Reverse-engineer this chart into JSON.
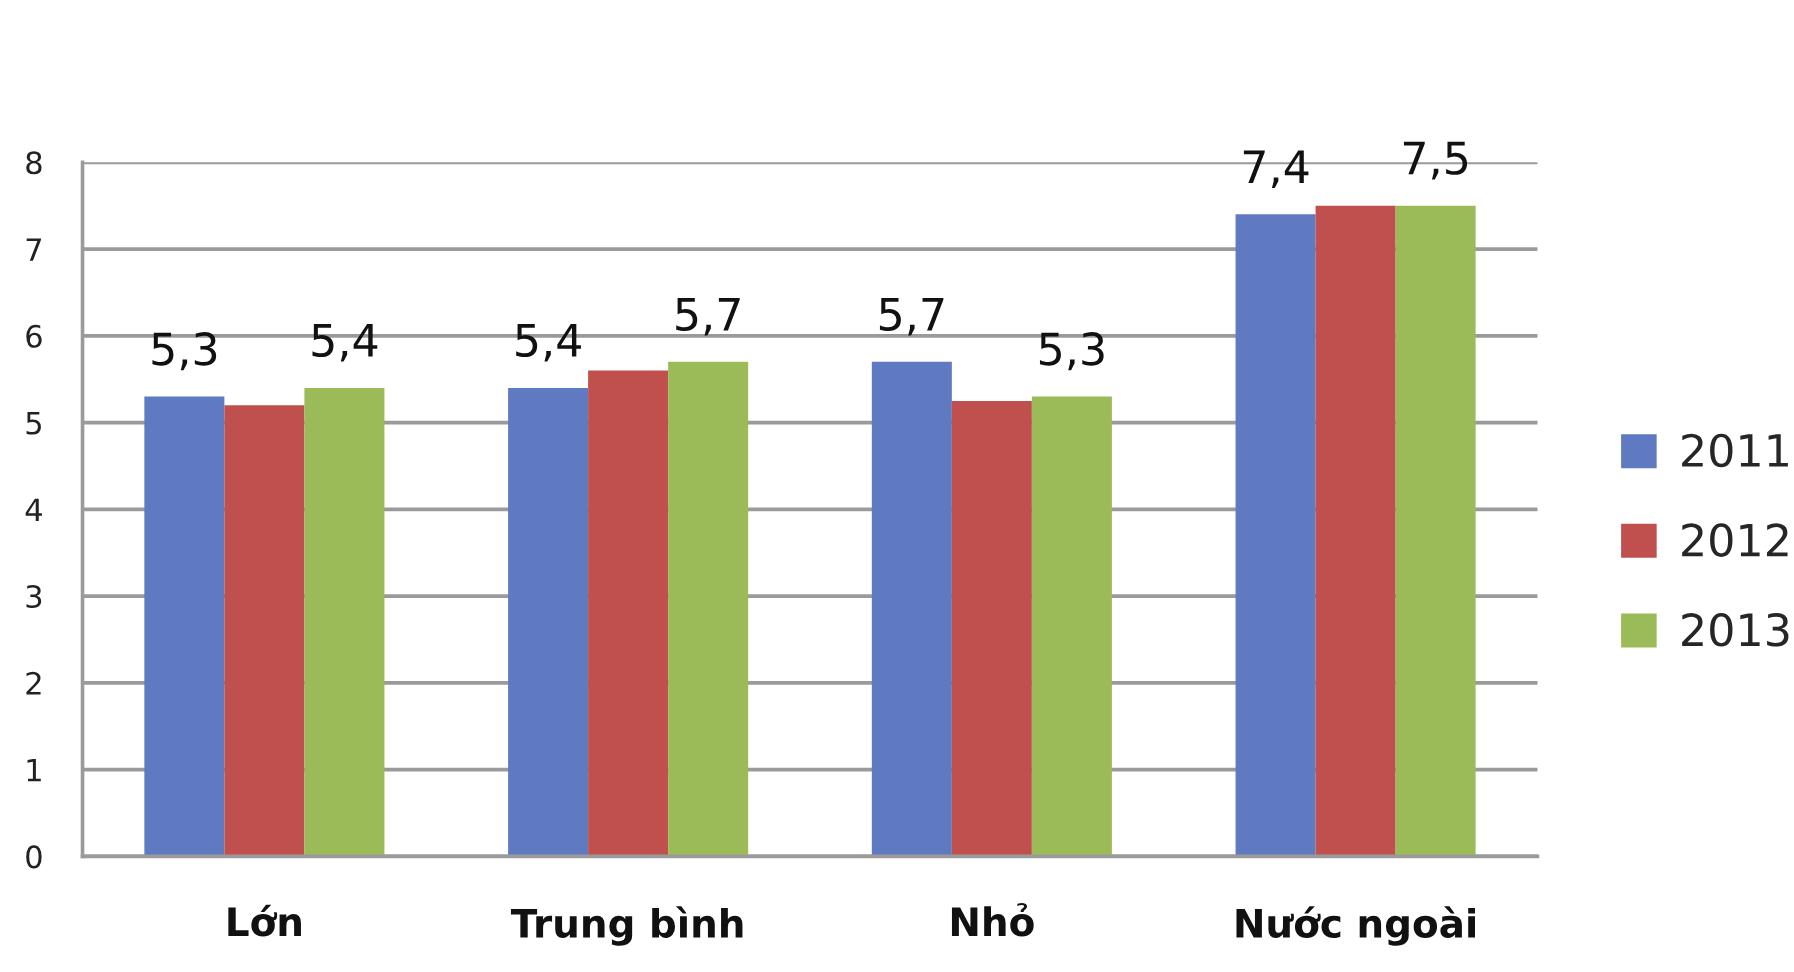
{
  "chart_data": {
    "type": "bar",
    "categories": [
      "Lớn",
      "Trung bình",
      "Nhỏ",
      "Nước ngoài"
    ],
    "series": [
      {
        "name": "2011",
        "color": "#5f7ac0",
        "values": [
          5.3,
          5.4,
          5.7,
          7.4
        ],
        "value_labels": [
          "5,3",
          "5,4",
          "5,7",
          "7,4"
        ]
      },
      {
        "name": "2012",
        "color": "#c0504d",
        "values": [
          5.2,
          5.6,
          5.25,
          7.5
        ]
      },
      {
        "name": "2013",
        "color": "#9bbb59",
        "values": [
          5.4,
          5.7,
          5.3,
          7.5
        ],
        "value_labels": [
          "5,4",
          "5,7",
          "5,3",
          "7,5"
        ]
      }
    ],
    "ylim": [
      0,
      8
    ],
    "yticks": [
      0,
      1,
      2,
      3,
      4,
      5,
      6,
      7,
      8
    ],
    "grid": "y",
    "legend": "right"
  }
}
